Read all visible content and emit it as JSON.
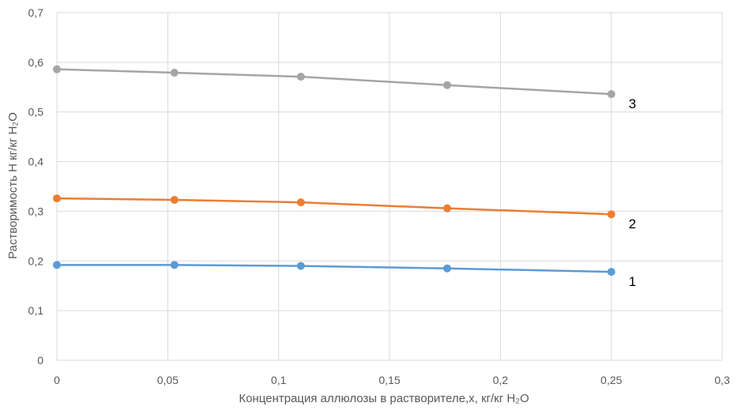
{
  "chart_data": {
    "type": "line",
    "xlabel": "Концентрация аллюлозы в растворителе,x, кг/кг H₂O",
    "ylabel": "Растворимость H кг/кг H₂O",
    "xlim": [
      0,
      0.3
    ],
    "ylim": [
      0,
      0.7
    ],
    "x_ticks": [
      0,
      0.05,
      0.1,
      0.15,
      0.2,
      0.25,
      0.3
    ],
    "x_tick_labels": [
      "0",
      "0,05",
      "0,1",
      "0,15",
      "0,2",
      "0,25",
      "0,3"
    ],
    "y_ticks": [
      0,
      0.1,
      0.2,
      0.3,
      0.4,
      0.5,
      0.6,
      0.7
    ],
    "y_tick_labels": [
      "0",
      "0,1",
      "0,2",
      "0,3",
      "0,4",
      "0,5",
      "0,6",
      "0,7"
    ],
    "grid": true,
    "x": [
      0,
      0.053,
      0.11,
      0.176,
      0.25
    ],
    "series": [
      {
        "label": "1",
        "color": "#5B9BD5",
        "values": [
          0.192,
          0.192,
          0.19,
          0.185,
          0.178
        ]
      },
      {
        "label": "2",
        "color": "#ED7D31",
        "values": [
          0.326,
          0.323,
          0.318,
          0.306,
          0.294
        ]
      },
      {
        "label": "3",
        "color": "#A5A5A5",
        "values": [
          0.586,
          0.579,
          0.571,
          0.554,
          0.536
        ]
      }
    ]
  }
}
